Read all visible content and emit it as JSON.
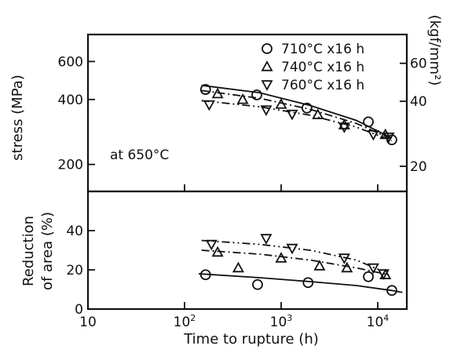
{
  "chart_data": [
    {
      "panel": "top",
      "type": "scatter",
      "ylabel": "stress (MPa)",
      "y2label": "(kgf/mm²)",
      "xlim": [
        10,
        20000
      ],
      "xscale": "log",
      "ylim": [
        150,
        800
      ],
      "yscale": "log",
      "yticks": [
        200,
        400,
        600
      ],
      "ytick_labels": [
        "200",
        "400",
        "600"
      ],
      "y2ticks": [
        20,
        40,
        60
      ],
      "y2tick_labels": [
        "20",
        "40",
        "60"
      ],
      "annotation": "at 650°C",
      "legend_position": "top-right",
      "series": [
        {
          "name": "710°C x16 h",
          "marker": "circle",
          "points": [
            [
              165,
              445
            ],
            [
              560,
              420
            ],
            [
              1850,
              365
            ],
            [
              8000,
              315
            ],
            [
              14000,
              260
            ]
          ],
          "fit": [
            [
              150,
              465
            ],
            [
              600,
              430
            ],
            [
              2000,
              375
            ],
            [
              6000,
              320
            ],
            [
              14000,
              265
            ]
          ]
        },
        {
          "name": "740°C x16 h",
          "marker": "triangle-up",
          "points": [
            [
              220,
              425
            ],
            [
              400,
              400
            ],
            [
              1000,
              380
            ],
            [
              2400,
              340
            ],
            [
              4500,
              305
            ],
            [
              12000,
              275
            ]
          ],
          "fit": [
            [
              150,
              440
            ],
            [
              600,
              405
            ],
            [
              2000,
              360
            ],
            [
              6000,
              310
            ],
            [
              14000,
              262
            ]
          ]
        },
        {
          "name": "760°C x16 h",
          "marker": "triangle-down",
          "points": [
            [
              180,
              378
            ],
            [
              700,
              358
            ],
            [
              1300,
              342
            ],
            [
              4500,
              298
            ],
            [
              9000,
              275
            ],
            [
              13000,
              268
            ]
          ],
          "fit": [
            [
              150,
              395
            ],
            [
              600,
              370
            ],
            [
              2000,
              338
            ],
            [
              6000,
              298
            ],
            [
              14000,
              258
            ]
          ]
        }
      ]
    },
    {
      "panel": "bottom",
      "type": "scatter",
      "ylabel": "Reduction of area (%)",
      "xlabel": "Time to rupture (h)",
      "xlim": [
        10,
        20000
      ],
      "xscale": "log",
      "xticks": [
        10,
        100,
        1000,
        10000
      ],
      "xtick_labels": [
        "10",
        "10²",
        "10³",
        "10⁴"
      ],
      "ylim": [
        0,
        60
      ],
      "yticks": [
        0,
        20,
        40
      ],
      "ytick_labels": [
        "0",
        "20",
        "40"
      ],
      "series": [
        {
          "name": "710°C x16 h",
          "marker": "circle",
          "points": [
            [
              165,
              17.5
            ],
            [
              570,
              12.5
            ],
            [
              1900,
              13.5
            ],
            [
              8000,
              16.5
            ],
            [
              14000,
              9.5
            ]
          ],
          "fit": [
            [
              140,
              18
            ],
            [
              600,
              16
            ],
            [
              2000,
              14
            ],
            [
              6000,
              12
            ],
            [
              14000,
              9.5
            ],
            [
              18000,
              8.5
            ]
          ]
        },
        {
          "name": "740°C x16 h",
          "marker": "triangle-up",
          "points": [
            [
              220,
              29
            ],
            [
              360,
              21
            ],
            [
              1000,
              26
            ],
            [
              2500,
              22
            ],
            [
              4800,
              21
            ],
            [
              12000,
              17.5
            ]
          ],
          "fit": [
            [
              150,
              30
            ],
            [
              600,
              28
            ],
            [
              2000,
              25
            ],
            [
              6000,
              21
            ],
            [
              13000,
              17.5
            ]
          ]
        },
        {
          "name": "760°C x16 h",
          "marker": "triangle-down",
          "points": [
            [
              190,
              33
            ],
            [
              700,
              36
            ],
            [
              1300,
              31
            ],
            [
              4500,
              26
            ],
            [
              9000,
              21
            ],
            [
              11500,
              18
            ]
          ],
          "fit": [
            [
              150,
              35
            ],
            [
              600,
              33
            ],
            [
              2000,
              30
            ],
            [
              6000,
              25
            ],
            [
              11000,
              19.5
            ]
          ]
        }
      ]
    }
  ]
}
